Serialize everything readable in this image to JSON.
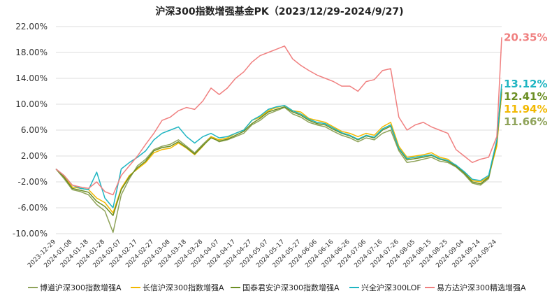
{
  "chart_data": {
    "type": "line",
    "title": "沪深300指数增强基金PK（2023/12/29-2024/9/27)",
    "xlabel": "",
    "ylabel": "",
    "ylim": [
      -10,
      22
    ],
    "yticks": [
      "22.00%",
      "18.00%",
      "14.00%",
      "10.00%",
      "6.00%",
      "2.00%",
      "-2.00%",
      "-6.00%",
      "-10.00%"
    ],
    "ytick_values": [
      22,
      18,
      14,
      10,
      6,
      2,
      -2,
      -6,
      -10
    ],
    "grid": true,
    "legend_position": "bottom",
    "x": [
      "2023-12-29",
      "2024-01-03",
      "2024-01-08",
      "2024-01-13",
      "2024-01-18",
      "2024-01-23",
      "2024-01-28",
      "2024-02-02",
      "2024-02-07",
      "2024-02-12",
      "2024-02-17",
      "2024-02-22",
      "2024-02-27",
      "2024-03-03",
      "2024-03-08",
      "2024-03-13",
      "2024-03-18",
      "2024-03-23",
      "2024-03-28",
      "2024-04-02",
      "2024-04-07",
      "2024-04-12",
      "2024-04-17",
      "2024-04-22",
      "2024-04-27",
      "2024-05-02",
      "2024-05-07",
      "2024-05-12",
      "2024-05-17",
      "2024-05-22",
      "2024-05-27",
      "2024-06-01",
      "2024-06-06",
      "2024-06-11",
      "2024-06-16",
      "2024-06-21",
      "2024-06-26",
      "2024-07-01",
      "2024-07-06",
      "2024-07-11",
      "2024-07-16",
      "2024-07-21",
      "2024-07-26",
      "2024-07-31",
      "2024-08-05",
      "2024-08-10",
      "2024-08-15",
      "2024-08-20",
      "2024-08-25",
      "2024-08-30",
      "2024-09-04",
      "2024-09-09",
      "2024-09-14",
      "2024-09-19",
      "2024-09-24",
      "2024-09-27"
    ],
    "xtick_labels": [
      "2023-12-29",
      "2024-01-08",
      "2024-01-18",
      "2024-01-28",
      "2024-02-07",
      "2024-02-17",
      "2024-02-27",
      "2024-03-08",
      "2024-03-18",
      "2024-03-28",
      "2024-04-07",
      "2024-04-17",
      "2024-04-27",
      "2024-05-07",
      "2024-05-17",
      "2024-05-27",
      "2024-06-06",
      "2024-06-16",
      "2024-06-26",
      "2024-07-06",
      "2024-07-16",
      "2024-07-26",
      "2024-08-05",
      "2024-08-15",
      "2024-08-25",
      "2024-09-04",
      "2024-09-14",
      "2024-09-24"
    ],
    "series": [
      {
        "name": "博道沪深300指数增强A",
        "color": "#8fa35a",
        "values": [
          0,
          -1.5,
          -3.2,
          -3.5,
          -4,
          -5.5,
          -6.5,
          -9.8,
          -4,
          -1.5,
          0.5,
          1.5,
          3,
          3.5,
          3.8,
          4.5,
          3.5,
          2.5,
          3.8,
          5,
          4.2,
          4.5,
          5,
          5.5,
          6.8,
          7.5,
          8.5,
          9,
          9.5,
          8.5,
          8,
          7.2,
          6.8,
          6.5,
          5.8,
          5.2,
          4.8,
          4.2,
          4.8,
          4.5,
          5.5,
          6,
          2.8,
          1,
          1.2,
          1.5,
          1.8,
          1.2,
          1,
          0.3,
          -0.8,
          -2.2,
          -2.5,
          -1.5,
          4,
          11.66
        ],
        "end_label": "11.66%"
      },
      {
        "name": "长信沪深300指数增强A",
        "color": "#f2b800",
        "values": [
          0,
          -1.2,
          -2.8,
          -3,
          -3.2,
          -4.5,
          -5.2,
          -6.8,
          -3,
          -1,
          0,
          1,
          2.5,
          3,
          3.2,
          4,
          3.2,
          2.2,
          3.5,
          5,
          4.5,
          4.8,
          5.5,
          6,
          7.5,
          8,
          9,
          9.5,
          9.8,
          9,
          8.8,
          7.8,
          7.5,
          7.2,
          6.5,
          5.8,
          5.5,
          5,
          5.5,
          5.2,
          6.5,
          7.2,
          3.5,
          1.8,
          2,
          2.2,
          2.5,
          1.8,
          1.5,
          0.5,
          -0.5,
          -1.8,
          -2,
          -1.2,
          3.5,
          11.94
        ],
        "end_label": "11.94%"
      },
      {
        "name": "国泰君安沪深300指数增强A",
        "color": "#6b8e23",
        "values": [
          0,
          -1.3,
          -3,
          -3.3,
          -3.6,
          -5,
          -5.8,
          -7.2,
          -3.2,
          -1.2,
          0.2,
          1.2,
          2.8,
          3.3,
          3.5,
          4.2,
          3.3,
          2.3,
          3.6,
          4.8,
          4.3,
          4.6,
          5.2,
          5.8,
          7,
          7.8,
          8.8,
          9.2,
          9.6,
          8.8,
          8.3,
          7.5,
          7,
          6.8,
          6.1,
          5.5,
          5.1,
          4.5,
          5.1,
          4.8,
          6,
          6.6,
          3.1,
          1.4,
          1.6,
          1.8,
          2.1,
          1.5,
          1.2,
          0.4,
          -0.6,
          -2,
          -2.3,
          -1.3,
          4.2,
          12.41
        ],
        "end_label": "12.41%"
      },
      {
        "name": "兴全沪深300LOF",
        "color": "#1fb5c2",
        "values": [
          0,
          -1,
          -2.5,
          -3,
          -3.2,
          -0.5,
          -4.5,
          -6,
          0,
          1,
          1.8,
          2.8,
          4.5,
          5.5,
          6,
          6.5,
          5,
          4,
          5,
          5.5,
          4.8,
          5,
          5.5,
          6,
          7.5,
          8.2,
          9.2,
          9.6,
          9.8,
          9,
          8.5,
          7.7,
          7.2,
          7,
          6.3,
          5.6,
          5.2,
          4.6,
          5.2,
          4.9,
          6.2,
          6.8,
          3.2,
          1.6,
          1.8,
          2,
          2.2,
          1.6,
          1.3,
          0.6,
          -0.4,
          -1.6,
          -1.8,
          -1,
          4.5,
          13.12
        ],
        "end_label": "13.12%"
      },
      {
        "name": "易方达沪深300精选增强A",
        "color": "#f08080",
        "values": [
          0,
          -1,
          -2.5,
          -2.8,
          -3,
          -2,
          -3.5,
          -4,
          -1,
          0.5,
          2,
          3.8,
          5.5,
          7.5,
          8,
          9,
          9.5,
          9.2,
          10.5,
          12.5,
          11.5,
          12.5,
          14,
          15,
          16.5,
          17.5,
          18,
          18.5,
          19,
          17,
          16,
          15.2,
          14.5,
          14,
          13.5,
          12.8,
          12.8,
          12,
          13.5,
          13.8,
          15.2,
          15.5,
          8,
          6,
          6.8,
          7.2,
          6.5,
          6,
          5.5,
          3,
          2,
          1,
          1.5,
          1.8,
          5,
          20.35
        ],
        "end_label": "20.35%"
      }
    ]
  }
}
